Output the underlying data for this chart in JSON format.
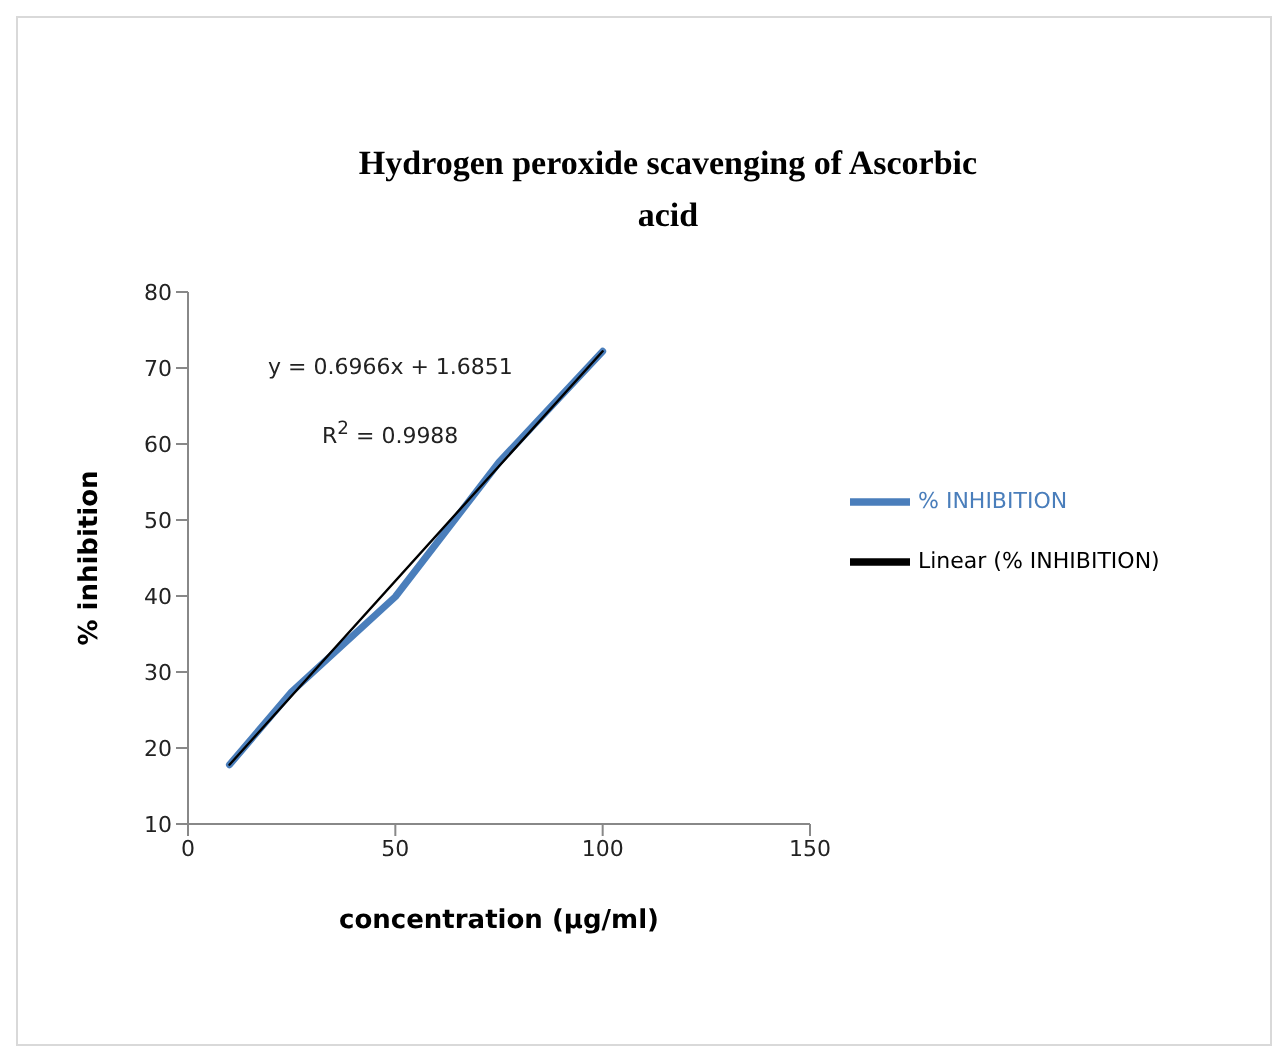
{
  "chart_data": {
    "type": "line",
    "title": "Hydrogen peroxide scavenging of Ascorbic acid",
    "xlabel": "concentration (µg/ml)",
    "ylabel": "% inhibition",
    "annotations": [
      "y = 0.6966x + 1.6851",
      "R$^{2}$ = 0.9988"
    ],
    "x": [
      10,
      25,
      50,
      75,
      100
    ],
    "series": [
      {
        "name": "% INHIBITION",
        "color": "#4a7ebb",
        "values": [
          17.8,
          27.4,
          39.9,
          57.6,
          72.2
        ]
      },
      {
        "name": "Linear (% INHIBITION)",
        "color": "#000000",
        "type": "line",
        "x": [
          10,
          100
        ],
        "values": [
          17.8,
          72.2
        ]
      }
    ],
    "xlim": [
      0,
      150
    ],
    "xticks": [
      0,
      50,
      100,
      150
    ],
    "ylim": [
      10,
      80
    ],
    "yticks": [
      10,
      20,
      30,
      40,
      50,
      60,
      70,
      80
    ],
    "grid": false,
    "legend": "right",
    "marker": "none",
    "line_style": "solid"
  }
}
